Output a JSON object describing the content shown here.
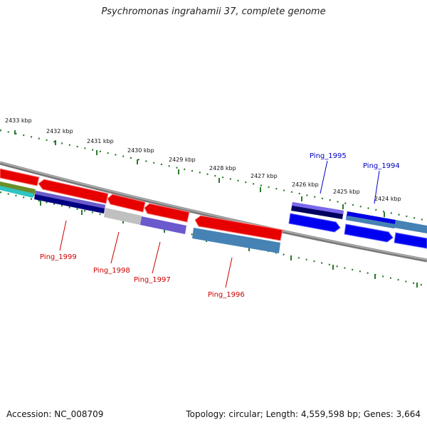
{
  "title": "Psychromonas ingrahamii 37, complete genome",
  "accession": "Accession: NC_008709",
  "summary": "Topology: circular; Length: 4,559,598 bp; Genes: 3,664",
  "colors": {
    "tick": "#2a7a2a",
    "backbone": "#808080",
    "forward_label": "#0000c0",
    "reverse_label": "#cc0000"
  },
  "ticks": [
    {
      "label": "2433 kbp"
    },
    {
      "label": "2432 kbp"
    },
    {
      "label": "2431 kbp"
    },
    {
      "label": "2430 kbp"
    },
    {
      "label": "2429 kbp"
    },
    {
      "label": "2428 kbp"
    },
    {
      "label": "2427 kbp"
    },
    {
      "label": "2426 kbp"
    },
    {
      "label": "2425 kbp"
    },
    {
      "label": "2424 kbp"
    }
  ],
  "genes": [
    {
      "name": "Ping_1999",
      "strand": "reverse"
    },
    {
      "name": "Ping_1998",
      "strand": "reverse"
    },
    {
      "name": "Ping_1997",
      "strand": "reverse"
    },
    {
      "name": "Ping_1996",
      "strand": "reverse"
    },
    {
      "name": "Ping_1995",
      "strand": "forward"
    },
    {
      "name": "Ping_1994",
      "strand": "forward"
    }
  ]
}
